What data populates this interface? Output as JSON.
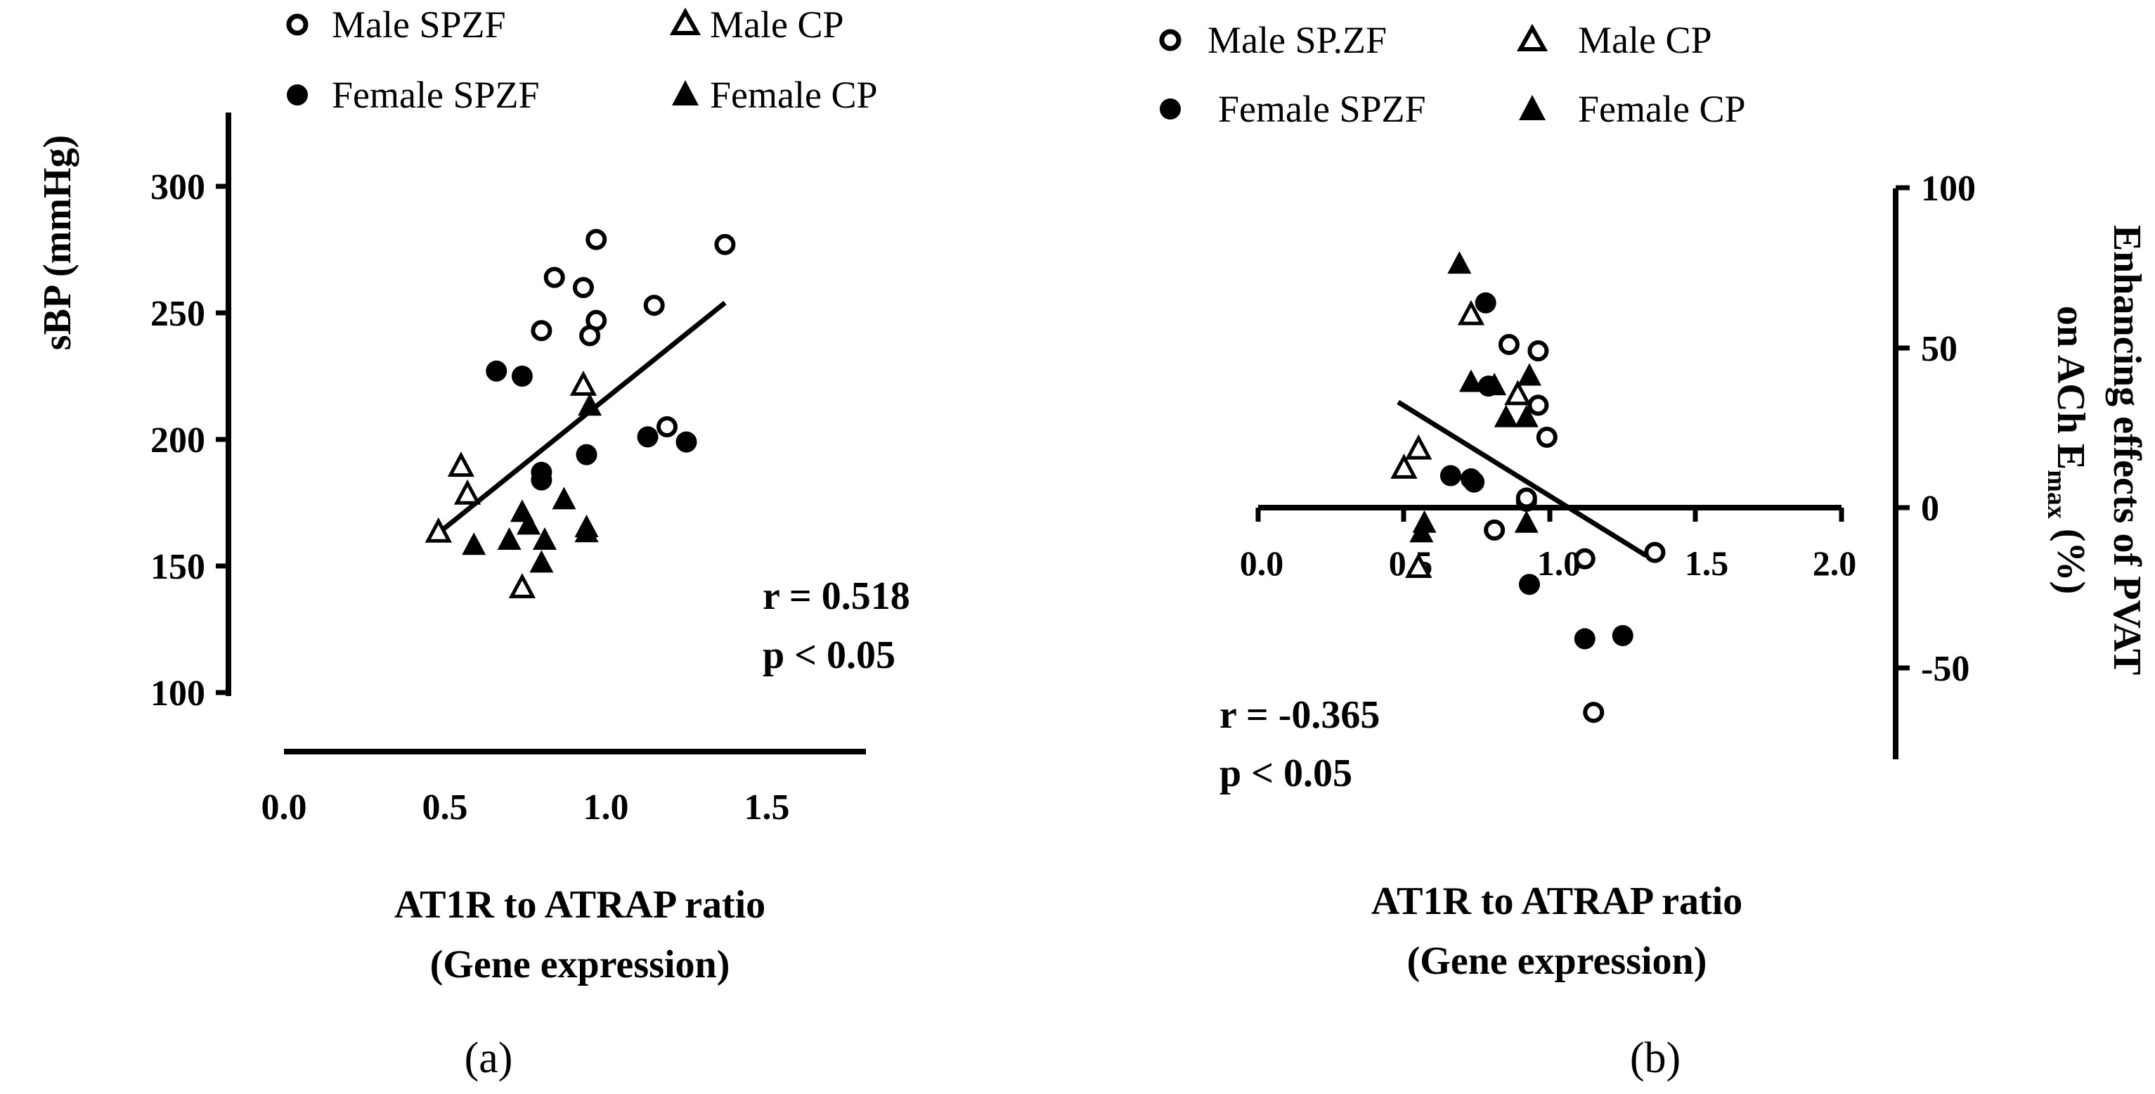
{
  "chart_data": [
    {
      "panel": "(a)",
      "type": "scatter",
      "xlabel": "AT1R to ATRAP ratio",
      "xlabel_sub": "(Gene expression)",
      "ylabel": "sBP (mmHg)",
      "xlim": [
        0,
        1.8
      ],
      "ylim": [
        100,
        325
      ],
      "x_ticks": [
        "0.0",
        "0.5",
        "1.0",
        "1.5"
      ],
      "y_ticks": [
        "100",
        "150",
        "200",
        "250",
        "300"
      ],
      "legend": [
        "Male SPZF",
        "Male CP",
        "Female SPZF",
        "Female CP"
      ],
      "series": [
        {
          "name": "Male SPZF",
          "x": [
            0.84,
            0.93,
            0.97,
            0.8,
            0.97,
            0.95,
            1.15,
            1.37,
            1.19
          ],
          "y": [
            264,
            260,
            279,
            243,
            247,
            241,
            253,
            277,
            205
          ]
        },
        {
          "name": "Male CP",
          "x": [
            0.55,
            0.57,
            0.48,
            0.93,
            0.74
          ],
          "y": [
            189,
            178,
            163,
            221,
            141
          ]
        },
        {
          "name": "Female SPZF",
          "x": [
            0.66,
            0.74,
            0.8,
            0.8,
            0.94,
            1.13,
            1.25
          ],
          "y": [
            227,
            225,
            187,
            184,
            194,
            201,
            199
          ]
        },
        {
          "name": "Female CP",
          "x": [
            0.59,
            0.7,
            0.74,
            0.76,
            0.81,
            0.8,
            0.87,
            0.94,
            0.94,
            0.95
          ],
          "y": [
            158,
            160,
            171,
            166,
            160,
            151,
            176,
            165,
            163,
            213
          ]
        }
      ],
      "fit_line": {
        "x": [
          0.48,
          1.37
        ],
        "y": [
          163,
          254
        ]
      },
      "annotations": [
        "r = 0.518",
        "p < 0.05"
      ]
    },
    {
      "panel": "(b)",
      "type": "scatter",
      "xlabel": "AT1R to ATRAP ratio",
      "xlabel_sub": "(Gene expression)",
      "ylabel": "Enhancing effects of PVAT on ACh Emax (%)",
      "ylabel_parts": [
        "Enhancing effects of PVAT",
        "on ACh E",
        "max",
        " (%)"
      ],
      "xlim": [
        0,
        2
      ],
      "ylim": [
        -80,
        100
      ],
      "x_ticks": [
        "0.0",
        "0.5",
        "1.0",
        "1.5",
        "2.0"
      ],
      "y_ticks": [
        "100",
        "50",
        "0",
        "-50"
      ],
      "legend": [
        "Male SP.ZF",
        "Male CP",
        "Female SPZF",
        "Female CP"
      ],
      "series": [
        {
          "name": "Male SP.ZF",
          "x": [
            0.86,
            0.96,
            0.96,
            0.99,
            0.92,
            0.92,
            0.81,
            1.12,
            1.36,
            1.15
          ],
          "y": [
            51,
            49,
            32,
            22,
            2,
            3,
            -7,
            -16,
            -14,
            -64
          ]
        },
        {
          "name": "Male CP",
          "x": [
            0.73,
            0.89,
            0.55,
            0.5,
            0.55
          ],
          "y": [
            60,
            35,
            18,
            12,
            -19
          ]
        },
        {
          "name": "Female SPZF",
          "x": [
            0.78,
            0.79,
            0.66,
            0.73,
            0.74,
            0.93,
            1.12,
            1.25
          ],
          "y": [
            64,
            38,
            10,
            9,
            8,
            -24,
            -41,
            -40
          ]
        },
        {
          "name": "Female CP",
          "x": [
            0.69,
            0.93,
            0.73,
            0.81,
            0.85,
            0.92,
            0.57,
            0.92,
            0.56
          ],
          "y": [
            76,
            41,
            39,
            38,
            28,
            28,
            -5,
            -5,
            -8
          ]
        }
      ],
      "fit_line": {
        "x": [
          0.48,
          1.33
        ],
        "y": [
          33,
          -15
        ]
      },
      "annotations": [
        "r = -0.365",
        "p < 0.05"
      ]
    }
  ]
}
